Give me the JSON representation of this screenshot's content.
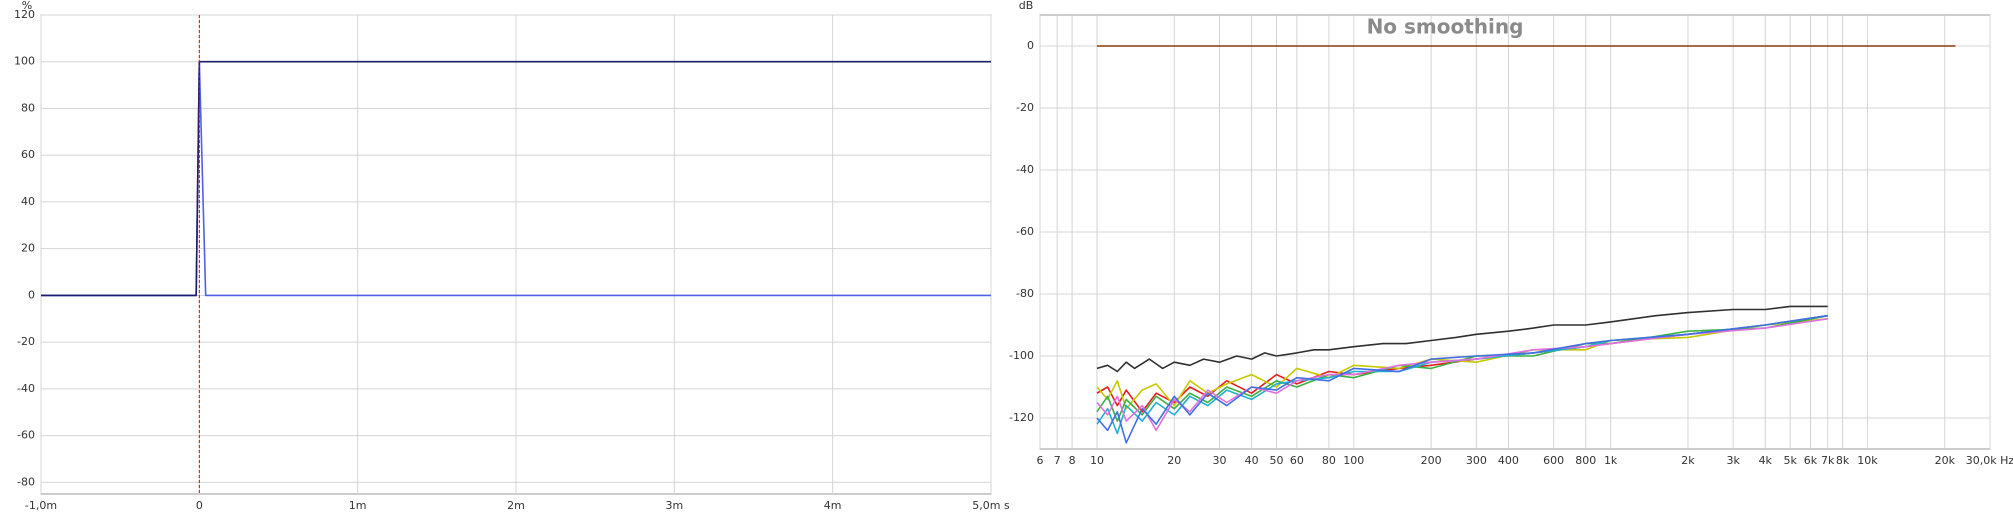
{
  "chart_data": [
    {
      "type": "line",
      "y_label": "%",
      "grid": true,
      "xlim": [
        -0.001,
        0.005
      ],
      "ylim": [
        -85,
        120
      ],
      "xticks": [
        {
          "value": -0.001,
          "label": "-1,0m"
        },
        0,
        {
          "value": 0.001,
          "label": "1m"
        },
        {
          "value": 0.002,
          "label": "2m"
        },
        {
          "value": 0.003,
          "label": "3m"
        },
        {
          "value": 0.004,
          "label": "4m"
        },
        {
          "value": 0.005,
          "label": "5,0m s"
        }
      ],
      "yticks": [
        -80,
        -60,
        -40,
        -20,
        0,
        20,
        40,
        60,
        80,
        100,
        120
      ],
      "marker_x": 0,
      "marker_color": "#d01010",
      "series": [
        {
          "color": "#5060e8",
          "x": [
            -0.001,
            -2e-05,
            0,
            4e-05,
            0.005
          ],
          "values": [
            0,
            0,
            100,
            0,
            0
          ]
        },
        {
          "color": "#1c1c6b",
          "x": [
            -0.001,
            -2e-05,
            0,
            0.005
          ],
          "values": [
            0,
            0,
            100,
            100
          ]
        }
      ]
    },
    {
      "type": "line",
      "title": "No smoothing",
      "y_label": "dB",
      "grid": true,
      "log_x": true,
      "xlim": [
        6,
        30000
      ],
      "ylim": [
        -130,
        10
      ],
      "xticks": [
        6,
        7,
        8,
        10,
        20,
        30,
        40,
        50,
        60,
        80,
        100,
        200,
        300,
        400,
        600,
        800,
        {
          "value": 1000,
          "label": "1k"
        },
        {
          "value": 2000,
          "label": "2k"
        },
        {
          "value": 3000,
          "label": "3k"
        },
        {
          "value": 4000,
          "label": "4k"
        },
        {
          "value": 5000,
          "label": "5k"
        },
        {
          "value": 6000,
          "label": "6k"
        },
        {
          "value": 7000,
          "label": "7k"
        },
        {
          "value": 8000,
          "label": "8k"
        },
        {
          "value": 10000,
          "label": "10k"
        },
        {
          "value": 20000,
          "label": "20k"
        },
        {
          "value": 30000,
          "label": "30,0k Hz"
        }
      ],
      "yticks": [
        -120,
        -100,
        -80,
        -60,
        -40,
        -20,
        0
      ],
      "series": [
        {
          "color": "#8b3a0a",
          "x": [
            10,
            22000
          ],
          "values": [
            0,
            0
          ]
        },
        {
          "color": "#e02020",
          "x": [
            10,
            11,
            12,
            13,
            15,
            17,
            20,
            23,
            27,
            32,
            40,
            50,
            60,
            80,
            100,
            150,
            200,
            300,
            500,
            800,
            1000,
            2000,
            4000,
            7000
          ],
          "values": [
            -112,
            -110,
            -116,
            -111,
            -118,
            -112,
            -115,
            -110,
            -113,
            -108,
            -112,
            -106,
            -109,
            -105,
            -106,
            -104,
            -103,
            -101,
            -99,
            -97,
            -96,
            -93,
            -90,
            -87
          ]
        },
        {
          "color": "#c8c800",
          "x": [
            10,
            11,
            12,
            13,
            15,
            17,
            20,
            23,
            27,
            32,
            40,
            50,
            60,
            80,
            100,
            150,
            200,
            300,
            500,
            800,
            1000,
            2000,
            4000,
            7000
          ],
          "values": [
            -110,
            -114,
            -108,
            -117,
            -111,
            -109,
            -116,
            -108,
            -112,
            -109,
            -106,
            -110,
            -104,
            -107,
            -103,
            -104,
            -101,
            -102,
            -98,
            -98,
            -95,
            -94,
            -90,
            -88
          ]
        },
        {
          "color": "#3cb043",
          "x": [
            10,
            11,
            12,
            13,
            15,
            17,
            20,
            23,
            27,
            32,
            40,
            50,
            60,
            80,
            100,
            150,
            200,
            300,
            500,
            800,
            1000,
            2000,
            4000,
            7000
          ],
          "values": [
            -118,
            -113,
            -121,
            -114,
            -119,
            -113,
            -117,
            -112,
            -115,
            -110,
            -113,
            -108,
            -110,
            -106,
            -107,
            -103,
            -104,
            -100,
            -100,
            -96,
            -96,
            -92,
            -91,
            -87
          ]
        },
        {
          "color": "#20b0d0",
          "x": [
            10,
            11,
            12,
            13,
            15,
            17,
            20,
            23,
            27,
            32,
            40,
            50,
            60,
            80,
            100,
            150,
            200,
            300,
            500,
            800,
            1000,
            2000,
            4000,
            7000
          ],
          "values": [
            -122,
            -117,
            -125,
            -116,
            -121,
            -115,
            -119,
            -113,
            -116,
            -111,
            -114,
            -109,
            -108,
            -107,
            -105,
            -105,
            -102,
            -101,
            -99,
            -97,
            -95,
            -93,
            -90,
            -87
          ]
        },
        {
          "color": "#e070e0",
          "x": [
            10,
            11,
            12,
            13,
            15,
            17,
            20,
            23,
            27,
            32,
            40,
            50,
            60,
            80,
            100,
            150,
            200,
            300,
            500,
            800,
            1000,
            2000,
            4000,
            7000
          ],
          "values": [
            -115,
            -119,
            -113,
            -121,
            -116,
            -124,
            -114,
            -118,
            -111,
            -115,
            -110,
            -112,
            -108,
            -106,
            -106,
            -103,
            -102,
            -101,
            -98,
            -97,
            -96,
            -93,
            -91,
            -88
          ]
        },
        {
          "color": "#4070e0",
          "x": [
            10,
            11,
            12,
            13,
            15,
            17,
            20,
            23,
            27,
            32,
            40,
            50,
            60,
            80,
            100,
            150,
            200,
            300,
            500,
            800,
            1000,
            2000,
            4000,
            7000
          ],
          "values": [
            -120,
            -124,
            -118,
            -128,
            -117,
            -122,
            -113,
            -119,
            -112,
            -116,
            -110,
            -111,
            -107,
            -108,
            -104,
            -105,
            -101,
            -100,
            -99,
            -96,
            -95,
            -93,
            -90,
            -87
          ]
        },
        {
          "color": "#303030",
          "x": [
            10,
            11,
            12,
            13,
            14,
            16,
            18,
            20,
            23,
            26,
            30,
            35,
            40,
            45,
            50,
            60,
            70,
            80,
            100,
            130,
            160,
            200,
            250,
            300,
            400,
            500,
            600,
            800,
            1000,
            1500,
            2000,
            3000,
            4000,
            5000,
            7000
          ],
          "values": [
            -104,
            -103,
            -105,
            -102,
            -104,
            -101,
            -104,
            -102,
            -103,
            -101,
            -102,
            -100,
            -101,
            -99,
            -100,
            -99,
            -98,
            -98,
            -97,
            -96,
            -96,
            -95,
            -94,
            -93,
            -92,
            -91,
            -90,
            -90,
            -89,
            -87,
            -86,
            -85,
            -85,
            -84,
            -84
          ]
        }
      ]
    }
  ]
}
